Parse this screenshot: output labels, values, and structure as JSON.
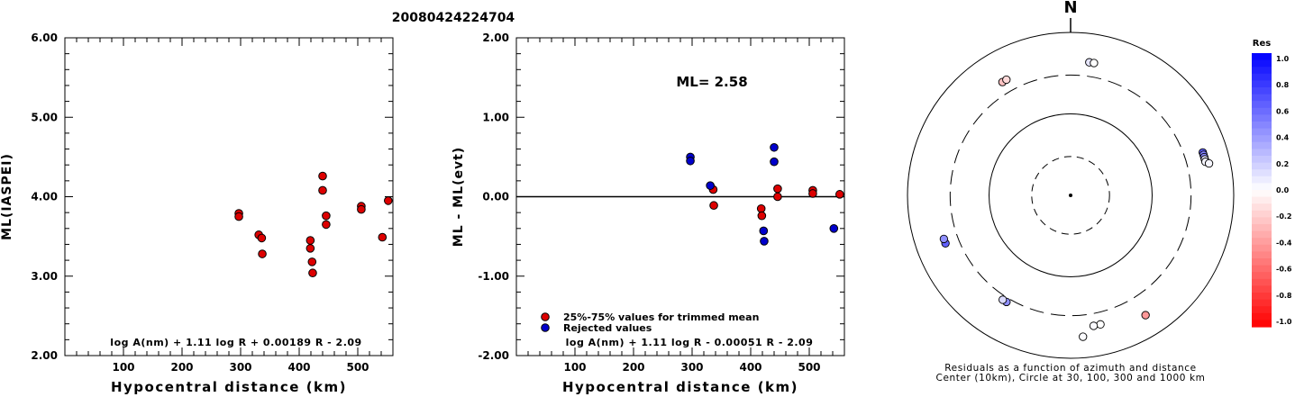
{
  "title": "20080424224704",
  "chart_data": [
    {
      "type": "scatter",
      "ylabel": "ML(IASPEI)",
      "xlabel": "Hypocentral distance (km)",
      "xlim": [
        0,
        560
      ],
      "ylim": [
        2.0,
        6.0
      ],
      "xticks": [
        100,
        200,
        300,
        400,
        500
      ],
      "xtick_labels": [
        "100",
        "200",
        "300",
        "400",
        "500"
      ],
      "yticks": [
        2.0,
        3.0,
        4.0,
        5.0,
        6.0
      ],
      "ytick_labels": [
        "2.00",
        "3.00",
        "4.00",
        "5.00",
        "6.00"
      ],
      "formula": "log A(nm) + 1.11 log R + 0.00189 R - 2.09",
      "series": [
        {
          "color": "#dd0000",
          "points": [
            [
              297,
              3.79
            ],
            [
              297,
              3.75
            ],
            [
              331,
              3.52
            ],
            [
              336,
              3.48
            ],
            [
              337,
              3.28
            ],
            [
              419,
              3.45
            ],
            [
              419,
              3.35
            ],
            [
              422,
              3.18
            ],
            [
              423,
              3.04
            ],
            [
              440,
              4.26
            ],
            [
              440,
              4.08
            ],
            [
              446,
              3.76
            ],
            [
              446,
              3.65
            ],
            [
              506,
              3.88
            ],
            [
              506,
              3.84
            ],
            [
              542,
              3.49
            ],
            [
              552,
              3.95
            ]
          ]
        }
      ]
    },
    {
      "type": "scatter",
      "ylabel": "ML - ML(evt)",
      "xlabel": "Hypocentral distance (km)",
      "xlim": [
        0,
        560
      ],
      "ylim": [
        -2.0,
        2.0
      ],
      "xticks": [
        100,
        200,
        300,
        400,
        500
      ],
      "xtick_labels": [
        "100",
        "200",
        "300",
        "400",
        "500"
      ],
      "yticks": [
        -2.0,
        -1.0,
        0.0,
        1.0,
        2.0
      ],
      "ytick_labels": [
        "-2.00",
        "-1.00",
        "0.00",
        "1.00",
        "2.00"
      ],
      "reference_line": 0.0,
      "annotation": "ML= 2.58",
      "formula": "log A(nm) + 1.11 log R - 0.00051 R - 2.09",
      "series": [
        {
          "name": "25%-75% values for trimmed mean",
          "color": "#dd0000",
          "points": [
            [
              336,
              0.09
            ],
            [
              337,
              -0.11
            ],
            [
              418,
              -0.15
            ],
            [
              419,
              -0.24
            ],
            [
              446,
              0.1
            ],
            [
              446,
              0.0
            ],
            [
              506,
              0.08
            ],
            [
              506,
              0.04
            ],
            [
              552,
              0.03
            ]
          ]
        },
        {
          "name": "Rejected values",
          "color": "#0000cc",
          "points": [
            [
              297,
              0.5
            ],
            [
              297,
              0.45
            ],
            [
              331,
              0.14
            ],
            [
              422,
              -0.43
            ],
            [
              423,
              -0.56
            ],
            [
              440,
              0.62
            ],
            [
              440,
              0.44
            ],
            [
              542,
              -0.4
            ]
          ]
        }
      ]
    },
    {
      "type": "polar",
      "north_label": "N",
      "caption_line1": "Residuals as a function of azimuth and distance",
      "caption_line2": "Center (10km), Circle at 30, 100, 300 and 1000 km",
      "colorbar_title": "Res",
      "colorbar_ticks": [
        "1.0",
        "0.8",
        "0.6",
        "0.4",
        "0.2",
        "0.0",
        "-0.2",
        "-0.4",
        "-0.6",
        "-0.8",
        "-1.0"
      ],
      "points": [
        {
          "azimuth": -31,
          "distance_km": 419,
          "residual": -0.24
        },
        {
          "azimuth": -29,
          "distance_km": 420,
          "residual": -0.15
        },
        {
          "azimuth": 8,
          "distance_km": 446,
          "residual": 0.1
        },
        {
          "azimuth": 10,
          "distance_km": 446,
          "residual": 0.0
        },
        {
          "azimuth": 72,
          "distance_km": 506,
          "residual": 0.62
        },
        {
          "azimuth": 73,
          "distance_km": 506,
          "residual": 0.5
        },
        {
          "azimuth": 74,
          "distance_km": 506,
          "residual": 0.45
        },
        {
          "azimuth": 75,
          "distance_km": 506,
          "residual": 0.08
        },
        {
          "azimuth": 76,
          "distance_km": 506,
          "residual": 0.04
        },
        {
          "azimuth": 77,
          "distance_km": 552,
          "residual": 0.03
        },
        {
          "azimuth": 148,
          "distance_km": 542,
          "residual": -0.4
        },
        {
          "azimuth": 167,
          "distance_km": 422,
          "residual": 0.0
        },
        {
          "azimuth": 170,
          "distance_km": 423,
          "residual": 0.02
        },
        {
          "azimuth": 175,
          "distance_km": 552,
          "residual": 0.01
        },
        {
          "azimuth": 211,
          "distance_km": 336,
          "residual": 0.44
        },
        {
          "azimuth": 213,
          "distance_km": 337,
          "residual": 0.14
        },
        {
          "azimuth": 249,
          "distance_km": 440,
          "residual": 0.62
        },
        {
          "azimuth": 251,
          "distance_km": 440,
          "residual": 0.44
        }
      ]
    }
  ]
}
